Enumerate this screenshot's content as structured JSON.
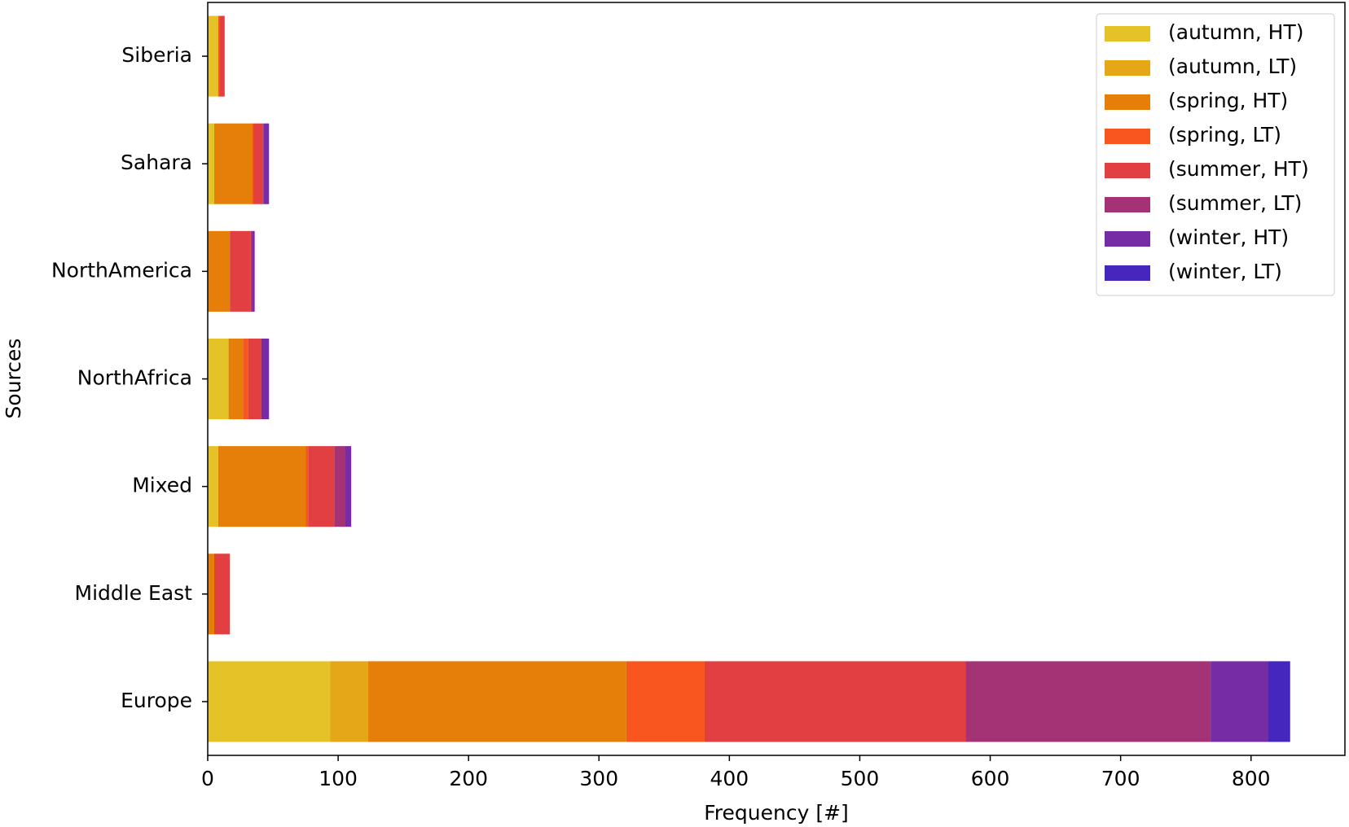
{
  "chart_data": {
    "type": "barh_stacked",
    "xlabel": "Frequency [#]",
    "ylabel": "Sources",
    "categories": [
      "Europe",
      "Middle East",
      "Mixed",
      "NorthAfrica",
      "NorthAmerica",
      "Sahara",
      "Siberia"
    ],
    "series": [
      {
        "name": "(autumn, HT)",
        "color": "#e6c229",
        "values": [
          94,
          0,
          8,
          16,
          0,
          5,
          8
        ]
      },
      {
        "name": "(autumn, LT)",
        "color": "#e5a617",
        "values": [
          29,
          0,
          0,
          0,
          0,
          0,
          0
        ]
      },
      {
        "name": "(spring, HT)",
        "color": "#e67e0a",
        "values": [
          198,
          5,
          67,
          11,
          17,
          29,
          0
        ]
      },
      {
        "name": "(spring, LT)",
        "color": "#f8551f",
        "values": [
          60,
          0,
          2,
          4,
          0,
          1,
          1
        ]
      },
      {
        "name": "(summer, HT)",
        "color": "#e23f43",
        "values": [
          200,
          12,
          20,
          10,
          16,
          7,
          4
        ]
      },
      {
        "name": "(summer, LT)",
        "color": "#a33374",
        "values": [
          188,
          0,
          8,
          0,
          1,
          1,
          0
        ]
      },
      {
        "name": "(winter, HT)",
        "color": "#752ca4",
        "values": [
          44,
          0,
          5,
          6,
          2,
          4,
          0
        ]
      },
      {
        "name": "(winter, LT)",
        "color": "#4627bd",
        "values": [
          17,
          0,
          0,
          0,
          0,
          0,
          0
        ]
      }
    ],
    "xlim": [
      0,
      872
    ],
    "xticks": [
      0,
      100,
      200,
      300,
      400,
      500,
      600,
      700,
      800
    ],
    "legend": "upper right"
  }
}
